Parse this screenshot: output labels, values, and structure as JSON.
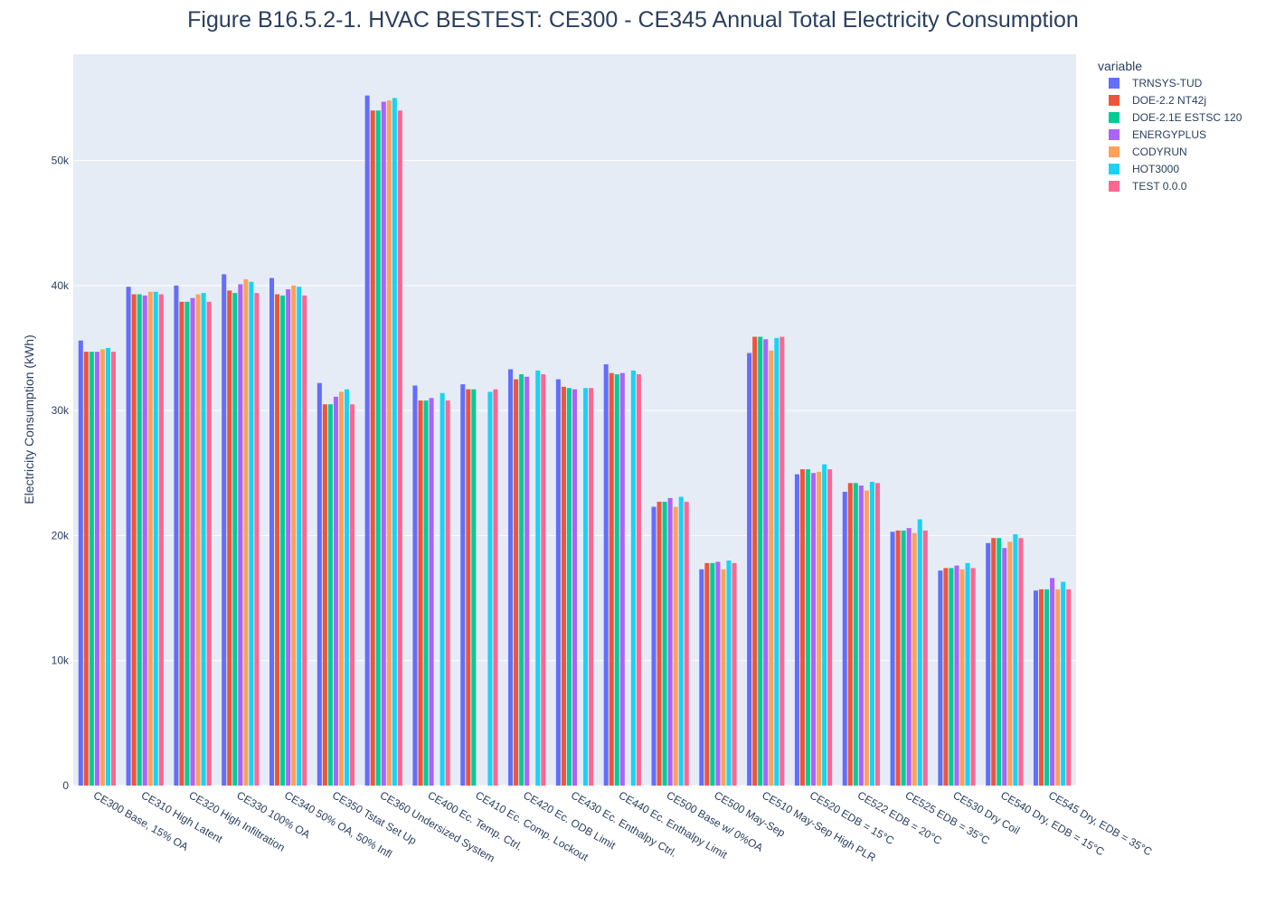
{
  "chart_data": {
    "type": "bar",
    "barmode": "group",
    "title": "Figure B16.5.2-1. HVAC BESTEST: CE300 - CE345 Annual Total Electricity Consumption",
    "xlabel": "",
    "ylabel": "Electricity Consumption  (kWh)",
    "ylim": [
      0,
      58500
    ],
    "yticks": [
      0,
      10000,
      20000,
      30000,
      40000,
      50000
    ],
    "ytick_labels": [
      "0",
      "10k",
      "20k",
      "30k",
      "40k",
      "50k"
    ],
    "grid": true,
    "legend_title": "variable",
    "legend_position": "right",
    "categories": [
      "CE300 Base, 15% OA",
      "CE310 High Latent",
      "CE320 High Infiltration",
      "CE330 100% OA",
      "CE340 50% OA, 50% Infl",
      "CE350 Tstat Set Up",
      "CE360 Undersized System",
      "CE400 Ec. Temp. Ctrl.",
      "CE410 Ec. Comp. Lockout",
      "CE420 Ec. ODB Limit",
      "CE430 Ec. Enthalpy Ctrl.",
      "CE440 Ec. Enthalpy Limit",
      "CE500 Base w/ 0%OA",
      "CE500 May-Sep",
      "CE510 May-Sep High PLR",
      "CE520 EDB = 15°C",
      "CE522 EDB = 20°C",
      "CE525 EDB = 35°C",
      "CE530 Dry Coil",
      "CE540 Dry, EDB = 15°C",
      "CE545 Dry, EDB = 35°C"
    ],
    "series": [
      {
        "name": "TRNSYS-TUD",
        "color": "#636efa",
        "values": [
          35600,
          39900,
          40000,
          40900,
          40600,
          32200,
          55200,
          32000,
          32100,
          33300,
          32500,
          33700,
          22300,
          17300,
          34600,
          24900,
          23500,
          20300,
          17200,
          19400,
          15600
        ]
      },
      {
        "name": "DOE-2.2 NT42j",
        "color": "#ef553b",
        "values": [
          34700,
          39300,
          38700,
          39600,
          39300,
          30500,
          54000,
          30800,
          31700,
          32500,
          31900,
          33000,
          22700,
          17800,
          35900,
          25300,
          24200,
          20400,
          17400,
          19800,
          15700
        ]
      },
      {
        "name": "DOE-2.1E ESTSC 120",
        "color": "#00cc96",
        "values": [
          34700,
          39300,
          38700,
          39400,
          39200,
          30500,
          54000,
          30800,
          31700,
          32900,
          31800,
          32900,
          22700,
          17800,
          35900,
          25300,
          24200,
          20400,
          17400,
          19800,
          15700
        ]
      },
      {
        "name": "ENERGYPLUS",
        "color": "#ab63fa",
        "values": [
          34700,
          39200,
          39000,
          40100,
          39700,
          31100,
          54700,
          31000,
          null,
          32700,
          31700,
          33000,
          23000,
          17900,
          35700,
          25000,
          24000,
          20600,
          17600,
          19000,
          16600
        ]
      },
      {
        "name": "CODYRUN",
        "color": "#ffa15a",
        "values": [
          34900,
          39500,
          39300,
          40500,
          40000,
          31500,
          54800,
          null,
          null,
          null,
          null,
          null,
          22300,
          17300,
          34800,
          25100,
          23600,
          20200,
          17300,
          19500,
          15700
        ]
      },
      {
        "name": "HOT3000",
        "color": "#19d3f3",
        "values": [
          35000,
          39500,
          39400,
          40300,
          39900,
          31700,
          55000,
          31400,
          31500,
          33200,
          31800,
          33200,
          23100,
          18000,
          35800,
          25700,
          24300,
          21300,
          17800,
          20100,
          16300
        ]
      },
      {
        "name": "TEST 0.0.0",
        "color": "#ff6692",
        "values": [
          34700,
          39300,
          38700,
          39400,
          39200,
          30500,
          54000,
          30800,
          31700,
          32900,
          31800,
          32900,
          22700,
          17800,
          35900,
          25300,
          24200,
          20400,
          17400,
          19800,
          15700
        ]
      }
    ]
  }
}
